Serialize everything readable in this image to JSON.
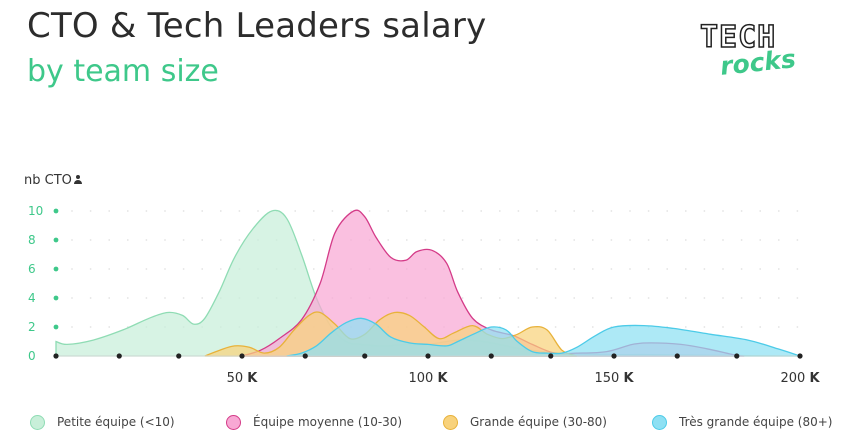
{
  "header": {
    "title": "CTO & Tech Leaders salary",
    "subtitle": "by team size"
  },
  "logo": {
    "line1": "TECH",
    "line2": "rocks"
  },
  "chart_data": {
    "type": "area",
    "ylabel": "nb CTO",
    "ylabel_icon": "person-icon",
    "xlim": [
      0,
      200
    ],
    "ylim": [
      0,
      10
    ],
    "y_ticks": [
      0,
      2,
      4,
      6,
      8,
      10
    ],
    "x_ticks": [
      {
        "value": 50,
        "num": "50",
        "unit": "K"
      },
      {
        "value": 100,
        "num": "100",
        "unit": "K"
      },
      {
        "value": 150,
        "num": "150",
        "unit": "K"
      },
      {
        "value": 200,
        "num": "200",
        "unit": "K"
      }
    ],
    "x_dot_ticks": [
      0,
      17,
      33,
      50,
      67,
      83,
      100,
      117,
      133,
      150,
      167,
      183,
      200
    ],
    "grid": "dotted",
    "legend_position": "bottom",
    "series": [
      {
        "name": "Petite équipe (<10)",
        "fill": "#c8efd9",
        "stroke": "#8fdcb4",
        "points": [
          [
            0,
            1
          ],
          [
            3,
            0.8
          ],
          [
            10,
            1.1
          ],
          [
            18,
            1.8
          ],
          [
            25,
            2.6
          ],
          [
            30,
            3.0
          ],
          [
            34,
            2.8
          ],
          [
            37,
            2.2
          ],
          [
            40,
            2.6
          ],
          [
            44,
            4.5
          ],
          [
            48,
            6.8
          ],
          [
            53,
            8.8
          ],
          [
            58,
            10.0
          ],
          [
            62,
            9.5
          ],
          [
            66,
            7.0
          ],
          [
            70,
            4.0
          ],
          [
            74,
            2.0
          ],
          [
            78,
            1.0
          ],
          [
            82,
            0.8
          ],
          [
            88,
            0.7
          ],
          [
            94,
            0.8
          ],
          [
            100,
            0.8
          ],
          [
            108,
            1.1
          ],
          [
            115,
            1.0
          ],
          [
            125,
            0.5
          ],
          [
            135,
            0.2
          ],
          [
            150,
            0.1
          ],
          [
            160,
            0.1
          ],
          [
            175,
            0.05
          ],
          [
            200,
            0
          ]
        ]
      },
      {
        "name": "Équipe moyenne (10-30)",
        "fill": "#f8a8d4",
        "stroke": "#d43b88",
        "points": [
          [
            50,
            0
          ],
          [
            55,
            0.4
          ],
          [
            60,
            1.2
          ],
          [
            66,
            2.5
          ],
          [
            71,
            5.0
          ],
          [
            75,
            8.5
          ],
          [
            80,
            10.0
          ],
          [
            83,
            9.6
          ],
          [
            86,
            8.2
          ],
          [
            90,
            6.8
          ],
          [
            94,
            6.6
          ],
          [
            97,
            7.2
          ],
          [
            101,
            7.3
          ],
          [
            105,
            6.4
          ],
          [
            108,
            4.4
          ],
          [
            112,
            2.6
          ],
          [
            117,
            1.8
          ],
          [
            123,
            1.4
          ],
          [
            128,
            0.8
          ],
          [
            134,
            0.2
          ],
          [
            140,
            0.2
          ],
          [
            148,
            0.3
          ],
          [
            155,
            0.8
          ],
          [
            160,
            0.9
          ],
          [
            168,
            0.8
          ],
          [
            175,
            0.5
          ],
          [
            182,
            0.1
          ],
          [
            185,
            0
          ]
        ]
      },
      {
        "name": "Grande équipe (30-80)",
        "fill": "#f8d27c",
        "stroke": "#e8b23a",
        "points": [
          [
            40,
            0
          ],
          [
            44,
            0.4
          ],
          [
            48,
            0.7
          ],
          [
            52,
            0.6
          ],
          [
            56,
            0.2
          ],
          [
            60,
            0.6
          ],
          [
            64,
            1.8
          ],
          [
            68,
            2.8
          ],
          [
            71,
            3.0
          ],
          [
            75,
            2.2
          ],
          [
            79,
            1.2
          ],
          [
            83,
            1.5
          ],
          [
            87,
            2.5
          ],
          [
            91,
            3.0
          ],
          [
            95,
            2.8
          ],
          [
            99,
            2.0
          ],
          [
            103,
            1.2
          ],
          [
            107,
            1.6
          ],
          [
            112,
            2.1
          ],
          [
            116,
            1.5
          ],
          [
            120,
            1.2
          ],
          [
            124,
            1.5
          ],
          [
            128,
            2.0
          ],
          [
            132,
            1.8
          ],
          [
            136,
            0.4
          ],
          [
            140,
            0
          ]
        ]
      },
      {
        "name": "Très grande équipe (80+)",
        "fill": "#8ee0f3",
        "stroke": "#4ccbe8",
        "points": [
          [
            62,
            0
          ],
          [
            66,
            0.2
          ],
          [
            70,
            0.7
          ],
          [
            74,
            1.6
          ],
          [
            78,
            2.3
          ],
          [
            82,
            2.6
          ],
          [
            86,
            2.2
          ],
          [
            90,
            1.3
          ],
          [
            95,
            0.9
          ],
          [
            100,
            0.8
          ],
          [
            105,
            0.7
          ],
          [
            108,
            1.0
          ],
          [
            113,
            1.6
          ],
          [
            117,
            2.0
          ],
          [
            121,
            1.8
          ],
          [
            124,
            1.0
          ],
          [
            128,
            0.3
          ],
          [
            132,
            0.2
          ],
          [
            136,
            0.2
          ],
          [
            140,
            0.6
          ],
          [
            145,
            1.4
          ],
          [
            150,
            2.0
          ],
          [
            158,
            2.1
          ],
          [
            166,
            1.9
          ],
          [
            176,
            1.5
          ],
          [
            186,
            1.1
          ],
          [
            194,
            0.5
          ],
          [
            200,
            0
          ]
        ]
      }
    ]
  }
}
